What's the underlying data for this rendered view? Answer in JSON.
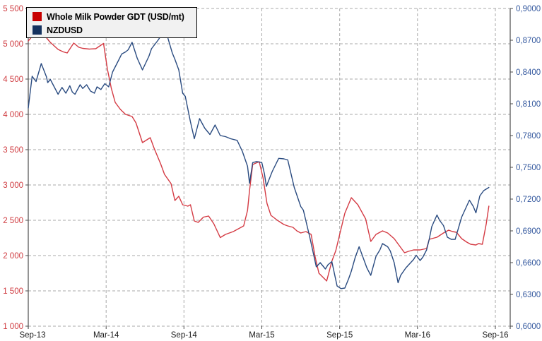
{
  "background": "#ffffff",
  "chart_data": {
    "type": "line",
    "title": "",
    "x_unit": "months after Sep-2013 (GDT auctions, twice monthly)",
    "x_axis": {
      "tick_months": [
        0,
        6,
        12,
        18,
        24,
        30,
        36
      ],
      "tick_labels": [
        "Sep-13",
        "Mar-14",
        "Sep-14",
        "Mar-15",
        "Sep-15",
        "Mar-16",
        "Sep-16"
      ],
      "label_color": "#1a1a1a"
    },
    "left_axis": {
      "series": "Whole Milk Powder GDT (USD/mt)",
      "min": 1000,
      "max": 5500,
      "step": 500,
      "tick_labels": [
        "5 500",
        "5 000",
        "4 500",
        "4 000",
        "3 500",
        "3 000",
        "2 500",
        "2 000",
        "1 500",
        "1 000"
      ],
      "label_color": "#cf3a3f"
    },
    "right_axis": {
      "series": "NZDUSD",
      "min": 0.6,
      "max": 0.9,
      "step": 0.03,
      "tick_labels": [
        "0,9000",
        "0,8700",
        "0,8400",
        "0,8100",
        "0,7800",
        "0,7500",
        "0,7200",
        "0,6900",
        "0,6600",
        "0,6300",
        "0,6000"
      ],
      "label_color": "#35599f"
    },
    "grid": {
      "color": "#a9a9a9",
      "dash": "4 3",
      "axis_color": "#4d4d4d"
    },
    "legend_position": "top-left",
    "series": [
      {
        "name": "Whole Milk Powder GDT (USD/mt)",
        "axis": "left",
        "line_color": "#d43b44",
        "swatch_color": "#c80000",
        "x": [
          0,
          0.5,
          1.4,
          1.7,
          2,
          2.3,
          2.7,
          3,
          3.5,
          3.9,
          4.2,
          4.7,
          5.2,
          5.8,
          6.1,
          6.4,
          6.7,
          7.1,
          7.5,
          8,
          8.3,
          8.8,
          9.4,
          9.7,
          10.2,
          10.5,
          11,
          11.3,
          11.6,
          11.9,
          12.3,
          12.5,
          12.8,
          13.1,
          13.5,
          13.9,
          14.3,
          14.8,
          15.2,
          15.8,
          16.3,
          16.6,
          16.9,
          17.05,
          17.3,
          17.8,
          18.1,
          18.4,
          18.7,
          19.2,
          19.7,
          20,
          20.4,
          20.7,
          21,
          21.4,
          21.8,
          22.1,
          22.4,
          23,
          23.4,
          23.7,
          24,
          24.4,
          24.9,
          25.4,
          26,
          26.4,
          26.8,
          27.3,
          27.7,
          28.2,
          29,
          29.3,
          29.7,
          30.2,
          30.7,
          30.9,
          31.5,
          32,
          32.4,
          32.7,
          33,
          33.4,
          33.8,
          34.1,
          34.5,
          34.7,
          35,
          35.3,
          35.5
        ],
        "values": [
          5040,
          5150,
          5085,
          5020,
          4970,
          4920,
          4885,
          4870,
          5010,
          4950,
          4935,
          4925,
          4930,
          5005,
          4640,
          4370,
          4170,
          4070,
          4000,
          3970,
          3880,
          3600,
          3670,
          3520,
          3300,
          3150,
          3020,
          2780,
          2840,
          2720,
          2700,
          2720,
          2490,
          2470,
          2545,
          2560,
          2450,
          2255,
          2300,
          2340,
          2390,
          2420,
          2640,
          2920,
          3290,
          3330,
          3100,
          2740,
          2570,
          2500,
          2440,
          2420,
          2400,
          2350,
          2320,
          2340,
          2300,
          1990,
          1750,
          1640,
          1920,
          2070,
          2300,
          2600,
          2820,
          2720,
          2520,
          2200,
          2300,
          2350,
          2320,
          2240,
          2040,
          2060,
          2080,
          2080,
          2100,
          2230,
          2260,
          2320,
          2360,
          2340,
          2330,
          2240,
          2190,
          2160,
          2150,
          2170,
          2160,
          2450,
          2700
        ]
      },
      {
        "name": "NZDUSD",
        "axis": "right",
        "line_color": "#2a4b80",
        "swatch_color": "#15325f",
        "x": [
          0,
          0.3,
          0.6,
          1,
          1.4,
          1.5,
          1.7,
          2,
          2.3,
          2.6,
          2.9,
          3.2,
          3.4,
          3.6,
          4,
          4.2,
          4.5,
          4.8,
          5.1,
          5.3,
          5.6,
          5.9,
          6.2,
          6.5,
          7,
          7.2,
          7.5,
          7.7,
          8,
          8.4,
          8.8,
          9.3,
          9.5,
          10,
          10.3,
          10.7,
          11.1,
          11.3,
          11.6,
          11.9,
          12.1,
          12.5,
          12.8,
          13.2,
          13.6,
          14,
          14.4,
          14.8,
          15.2,
          15.6,
          16.1,
          16.5,
          16.9,
          17.05,
          17.3,
          17.6,
          18,
          18.2,
          18.35,
          18.8,
          19.3,
          19.7,
          20,
          20.5,
          21,
          21.2,
          21.7,
          22.2,
          22.5,
          22.9,
          23.1,
          23.4,
          23.8,
          24.1,
          24.4,
          24.7,
          24.9,
          25.2,
          25.5,
          25.8,
          26.1,
          26.4,
          26.8,
          27.1,
          27.3,
          27.7,
          27.9,
          28.2,
          28.5,
          28.7,
          29.1,
          29.4,
          29.7,
          29.9,
          30.2,
          30.4,
          30.7,
          30.9,
          31.1,
          31.5,
          31.7,
          32,
          32.3,
          32.6,
          32.9,
          33.4,
          33.7,
          34,
          34.3,
          34.5,
          34.8,
          35.1,
          35.5
        ],
        "values": [
          0.806,
          0.836,
          0.831,
          0.848,
          0.8355,
          0.83,
          0.833,
          0.826,
          0.819,
          0.8255,
          0.82,
          0.827,
          0.821,
          0.819,
          0.828,
          0.8245,
          0.828,
          0.822,
          0.82,
          0.826,
          0.8235,
          0.829,
          0.826,
          0.84,
          0.852,
          0.857,
          0.859,
          0.861,
          0.868,
          0.853,
          0.842,
          0.855,
          0.862,
          0.87,
          0.8755,
          0.8745,
          0.858,
          0.852,
          0.842,
          0.82,
          0.817,
          0.793,
          0.777,
          0.796,
          0.787,
          0.781,
          0.79,
          0.78,
          0.779,
          0.777,
          0.7755,
          0.765,
          0.751,
          0.735,
          0.7545,
          0.7555,
          0.7545,
          0.744,
          0.732,
          0.746,
          0.7585,
          0.758,
          0.757,
          0.731,
          0.713,
          0.7095,
          0.684,
          0.656,
          0.66,
          0.654,
          0.658,
          0.661,
          0.638,
          0.6355,
          0.636,
          0.645,
          0.652,
          0.665,
          0.675,
          0.665,
          0.655,
          0.648,
          0.666,
          0.672,
          0.678,
          0.675,
          0.671,
          0.66,
          0.641,
          0.648,
          0.655,
          0.659,
          0.663,
          0.667,
          0.662,
          0.665,
          0.672,
          0.682,
          0.694,
          0.705,
          0.7,
          0.695,
          0.684,
          0.682,
          0.682,
          0.703,
          0.711,
          0.719,
          0.713,
          0.707,
          0.723,
          0.728,
          0.731
        ]
      }
    ]
  }
}
